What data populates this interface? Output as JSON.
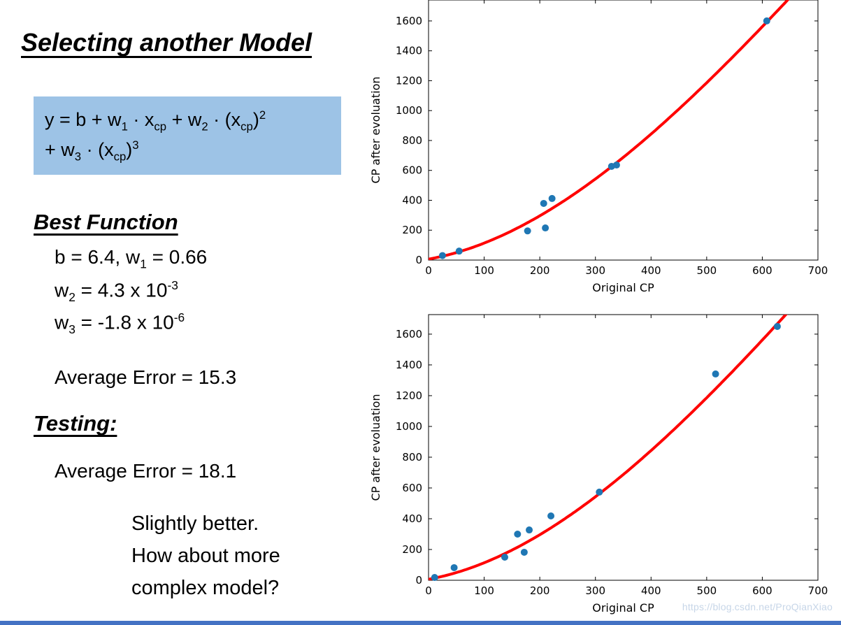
{
  "slide": {
    "title": "Selecting another Model",
    "formula": {
      "line1": [
        {
          "t": "y = b + w"
        },
        {
          "t": "1",
          "s": "sub"
        },
        {
          "t": " · x"
        },
        {
          "t": "cp",
          "s": "sub"
        },
        {
          "t": " + w"
        },
        {
          "t": "2",
          "s": "sub"
        },
        {
          "t": " · (x"
        },
        {
          "t": "cp",
          "s": "sub"
        },
        {
          "t": ")"
        },
        {
          "t": "2",
          "s": "sup"
        }
      ],
      "line2": [
        {
          "t": "+ w"
        },
        {
          "t": "3",
          "s": "sub"
        },
        {
          "t": " · (x"
        },
        {
          "t": "cp",
          "s": "sub"
        },
        {
          "t": ")"
        },
        {
          "t": "3",
          "s": "sup"
        }
      ]
    },
    "best_function": {
      "heading": "Best Function",
      "lines": [
        [
          {
            "t": "b = 6.4, w"
          },
          {
            "t": "1",
            "s": "sub"
          },
          {
            "t": " = 0.66"
          }
        ],
        [
          {
            "t": "w"
          },
          {
            "t": "2",
            "s": "sub"
          },
          {
            "t": " = 4.3 x 10"
          },
          {
            "t": "-3",
            "s": "sup"
          }
        ],
        [
          {
            "t": "w"
          },
          {
            "t": "3",
            "s": "sub"
          },
          {
            "t": " = -1.8 x 10"
          },
          {
            "t": "-6",
            "s": "sup"
          }
        ],
        [
          {
            "t": "Average Error = 15.3"
          }
        ]
      ]
    },
    "testing": {
      "heading": "Testing:",
      "line": [
        {
          "t": "Average Error = 18.1"
        }
      ]
    },
    "comment": [
      "Slightly better.",
      "How about more",
      "complex model?"
    ],
    "watermark": "https://blog.csdn.net/ProQianXiao"
  },
  "colors": {
    "formula_box_bg": "#9dc3e6",
    "curve": "#ff0000",
    "points": "#1f77b4",
    "frame": "#000000",
    "bottom_bar": "#4472c4",
    "watermark": "#c7d6e8"
  },
  "chart_data": [
    {
      "type": "scatter",
      "name": "training-fit",
      "xlabel": "Original CP",
      "ylabel": "CP after evoluation",
      "xlim": [
        0,
        700
      ],
      "ylim": [
        0,
        1740
      ],
      "xticks": [
        0,
        100,
        200,
        300,
        400,
        500,
        600,
        700
      ],
      "yticks": [
        0,
        200,
        400,
        600,
        800,
        1000,
        1200,
        1400,
        1600
      ],
      "grid": false,
      "legend": "none",
      "points": [
        [
          25,
          30
        ],
        [
          55,
          60
        ],
        [
          178,
          195
        ],
        [
          210,
          215
        ],
        [
          207,
          379
        ],
        [
          222,
          412
        ],
        [
          329,
          627
        ],
        [
          338,
          636
        ],
        [
          608,
          1600
        ]
      ],
      "fit": {
        "label": "y = b + w1*x + w2*x^2 + w3*x^3",
        "b": 6.4,
        "w1": 0.66,
        "w2": 0.0043,
        "w3": -1.8e-06
      }
    },
    {
      "type": "scatter",
      "name": "testing-fit",
      "xlabel": "Original CP",
      "ylabel": "CP after evoluation",
      "xlim": [
        0,
        700
      ],
      "ylim": [
        0,
        1727
      ],
      "xticks": [
        0,
        100,
        200,
        300,
        400,
        500,
        600,
        700
      ],
      "yticks": [
        0,
        200,
        400,
        600,
        800,
        1000,
        1200,
        1400,
        1600
      ],
      "grid": false,
      "legend": "none",
      "points": [
        [
          11,
          18
        ],
        [
          46,
          82
        ],
        [
          137,
          150
        ],
        [
          160,
          300
        ],
        [
          172,
          182
        ],
        [
          181,
          327
        ],
        [
          220,
          418
        ],
        [
          307,
          573
        ],
        [
          516,
          1341
        ],
        [
          627,
          1650
        ]
      ],
      "fit": {
        "label": "y = b + w1*x + w2*x^2 + w3*x^3",
        "b": 6.4,
        "w1": 0.66,
        "w2": 0.0043,
        "w3": -1.8e-06
      }
    }
  ]
}
